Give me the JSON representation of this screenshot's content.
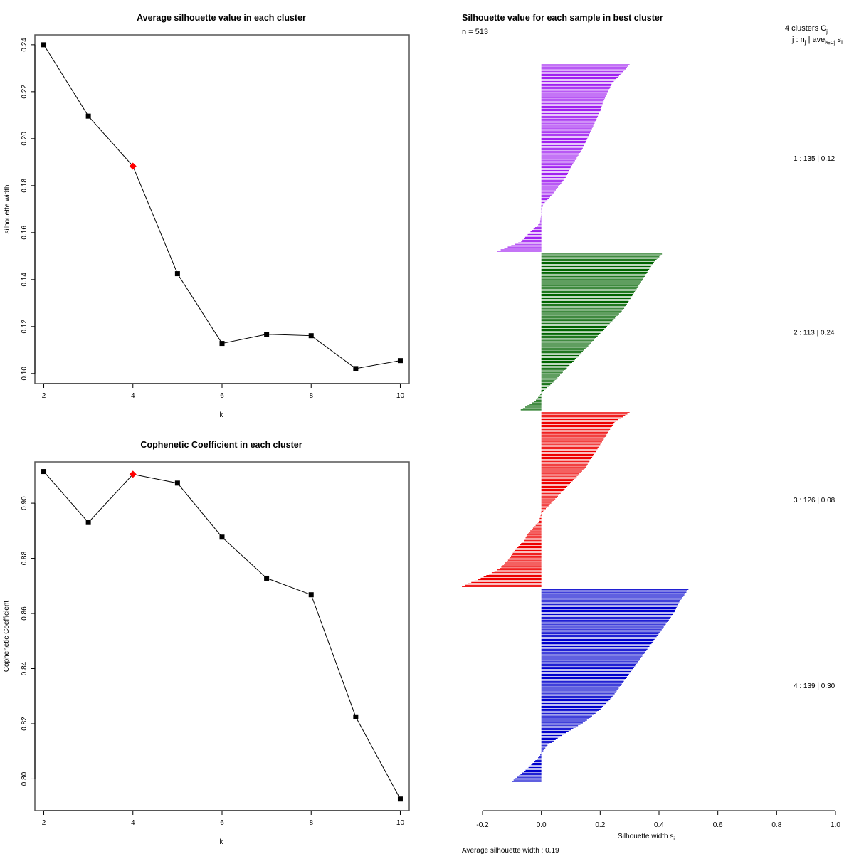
{
  "chart_data": [
    {
      "type": "line",
      "title": "Average silhouette value in each cluster",
      "xlabel": "k",
      "ylabel": "silhouette width",
      "x": [
        2,
        3,
        4,
        5,
        6,
        7,
        8,
        9,
        10
      ],
      "values": [
        0.24,
        0.2096,
        0.1883,
        0.1425,
        0.1128,
        0.1167,
        0.1161,
        0.1021,
        0.1055
      ],
      "highlight_k": 4,
      "highlight_color": "#FF0000",
      "xticks": [
        2,
        4,
        6,
        8,
        10
      ],
      "xtick_labels": [
        "2",
        "4",
        "6",
        "8",
        "10"
      ],
      "yticks": [
        0.1,
        0.12,
        0.14,
        0.16,
        0.18,
        0.2,
        0.22,
        0.24
      ],
      "ytick_labels": [
        "0.10",
        "0.12",
        "0.14",
        "0.16",
        "0.18",
        "0.20",
        "0.22",
        "0.24"
      ],
      "xlim": [
        1.8,
        10.2
      ],
      "ylim": [
        0.0957,
        0.2442
      ],
      "grid": false
    },
    {
      "type": "line",
      "title": "Cophenetic Coefficient in each cluster",
      "xlabel": "k",
      "ylabel": "Cophenetic Coefficient",
      "x": [
        2,
        3,
        4,
        5,
        6,
        7,
        8,
        9,
        10
      ],
      "values": [
        0.9115,
        0.893,
        0.9105,
        0.9073,
        0.8877,
        0.8728,
        0.8668,
        0.8225,
        0.7927
      ],
      "highlight_k": 4,
      "highlight_color": "#FF0000",
      "xticks": [
        2,
        4,
        6,
        8,
        10
      ],
      "xtick_labels": [
        "2",
        "4",
        "6",
        "8",
        "10"
      ],
      "yticks": [
        0.8,
        0.82,
        0.84,
        0.86,
        0.88,
        0.9
      ],
      "ytick_labels": [
        "0.80",
        "0.82",
        "0.84",
        "0.86",
        "0.88",
        "0.90"
      ],
      "xlim": [
        1.8,
        10.2
      ],
      "ylim": [
        0.7885,
        0.915
      ],
      "grid": false
    },
    {
      "type": "bar",
      "orientation": "horizontal",
      "title": "Silhouette value for each sample in best cluster",
      "n_label": "n = 513",
      "xlabel": "Silhouette width s",
      "xlabel_sub": "i",
      "xlim": [
        -0.2,
        1.0
      ],
      "xticks": [
        -0.2,
        0.0,
        0.2,
        0.4,
        0.6,
        0.8,
        1.0
      ],
      "xtick_labels": [
        "-0.2",
        "0.0",
        "0.2",
        "0.4",
        "0.6",
        "0.8",
        "1.0"
      ],
      "legend_header": "4  clusters  C",
      "legend_header_sub": "j",
      "legend_subheader": "j :  n",
      "legend_subheader_rest": " | ave",
      "legend_subheader_sub2": "i∈Cj",
      "legend_subheader_tail": " s",
      "legend_subheader_sub3": "i",
      "footer": "Average silhouette width :  0.19",
      "clusters": [
        {
          "id": 1,
          "n": 135,
          "avg": "0.12",
          "label": "1 :   135  |  0.12",
          "color": "#A020F0",
          "profile": [
            0.3,
            0.27,
            0.24,
            0.225,
            0.21,
            0.2,
            0.185,
            0.17,
            0.155,
            0.14,
            0.12,
            0.1,
            0.085,
            0.06,
            0.035,
            0.005,
            0.0,
            -0.005,
            -0.04,
            -0.07,
            -0.15
          ]
        },
        {
          "id": 2,
          "n": 113,
          "avg": "0.24",
          "label": "2 :   113  |  0.24",
          "color": "#006400",
          "profile": [
            0.41,
            0.38,
            0.36,
            0.34,
            0.32,
            0.3,
            0.28,
            0.25,
            0.22,
            0.19,
            0.16,
            0.13,
            0.1,
            0.07,
            0.04,
            0.005,
            -0.02,
            -0.07
          ]
        },
        {
          "id": 3,
          "n": 126,
          "avg": "0.08",
          "label": "3 :   126  |  0.08",
          "color": "#EE0000",
          "profile": [
            0.3,
            0.25,
            0.23,
            0.21,
            0.19,
            0.17,
            0.15,
            0.12,
            0.09,
            0.06,
            0.03,
            0.0,
            -0.01,
            -0.04,
            -0.06,
            -0.09,
            -0.11,
            -0.14,
            -0.2,
            -0.27
          ]
        },
        {
          "id": 4,
          "n": 139,
          "avg": "0.30",
          "label": "4 :   139  |  0.30",
          "color": "#0000CD",
          "profile": [
            0.5,
            0.47,
            0.45,
            0.42,
            0.39,
            0.36,
            0.33,
            0.3,
            0.27,
            0.24,
            0.2,
            0.15,
            0.08,
            0.02,
            -0.01,
            -0.05,
            -0.1
          ]
        }
      ]
    }
  ]
}
